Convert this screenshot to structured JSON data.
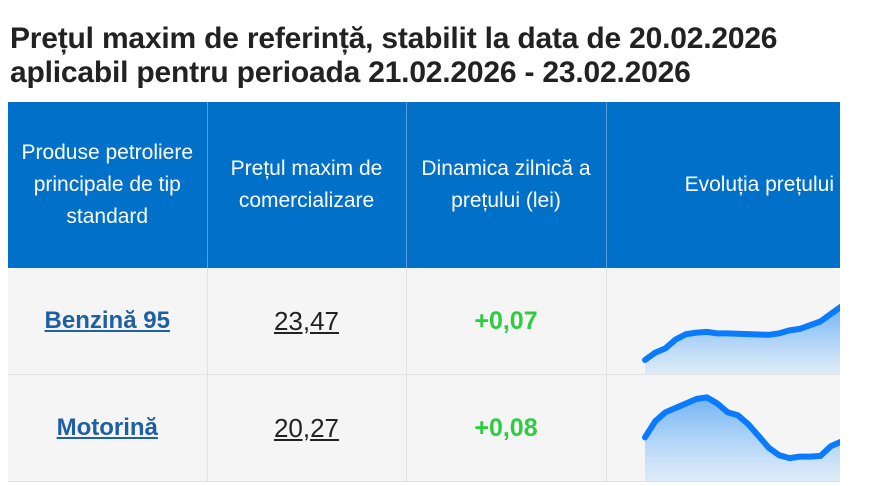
{
  "header": {
    "title_line1": "Prețul maxim de referință, stabilit la data de 20.02.2026",
    "title_line2": "aplicabil pentru perioada 21.02.2026 - 23.02.2026"
  },
  "table": {
    "columns": [
      "Produse petroliere principale de tip standard",
      "Prețul maxim de comercializare",
      "Dinamica zilnică a prețului (lei)",
      "Evoluția prețului"
    ],
    "rows": [
      {
        "product": "Benzină 95",
        "price": "23,47",
        "delta": "+0,07",
        "trend": [
          0.0,
          0.1,
          0.16,
          0.28,
          0.35,
          0.37,
          0.38,
          0.36,
          0.36,
          0.355,
          0.35,
          0.345,
          0.34,
          0.36,
          0.4,
          0.42,
          0.47,
          0.52,
          0.62,
          0.72
        ]
      },
      {
        "product": "Motorină",
        "price": "20,27",
        "delta": "+0,08",
        "trend": [
          0.4,
          0.62,
          0.74,
          0.8,
          0.86,
          0.92,
          0.94,
          0.86,
          0.74,
          0.7,
          0.58,
          0.42,
          0.26,
          0.16,
          0.12,
          0.14,
          0.14,
          0.15,
          0.28,
          0.34
        ]
      }
    ]
  },
  "colors": {
    "header_bg": "#0070c9",
    "row_bg": "#f5f5f5",
    "link": "#1f5fa3",
    "delta_positive": "#2ecc40",
    "sparkline": "#0a7bff"
  }
}
